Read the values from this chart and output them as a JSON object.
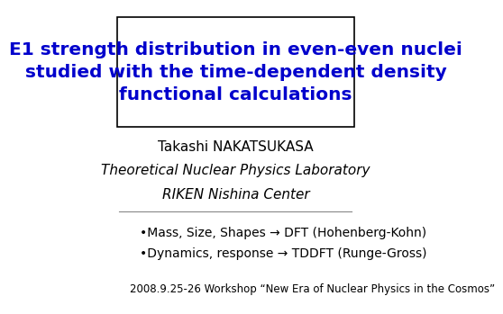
{
  "title_text": "E1 strength distribution in even-even nuclei\nstudied with the time-dependent density\nfunctional calculations",
  "title_color": "#0000CC",
  "title_fontsize": 14.5,
  "box_color": "#000000",
  "author": "Takashi NAKATSUKASA",
  "author_fontsize": 11,
  "affil1": "Theoretical Nuclear Physics Laboratory",
  "affil2": "RIKEN Nishina Center",
  "affil_fontsize": 11,
  "bullet1": "•Mass, Size, Shapes → DFT (Hohenberg-Kohn)",
  "bullet2": "•Dynamics, response → TDDFT (Runge-Gross)",
  "bullet_fontsize": 10,
  "footer": "2008.9.25-26 Workshop “New Era of Nuclear Physics in the Cosmos”",
  "footer_fontsize": 8.5,
  "bg_color": "#ffffff"
}
